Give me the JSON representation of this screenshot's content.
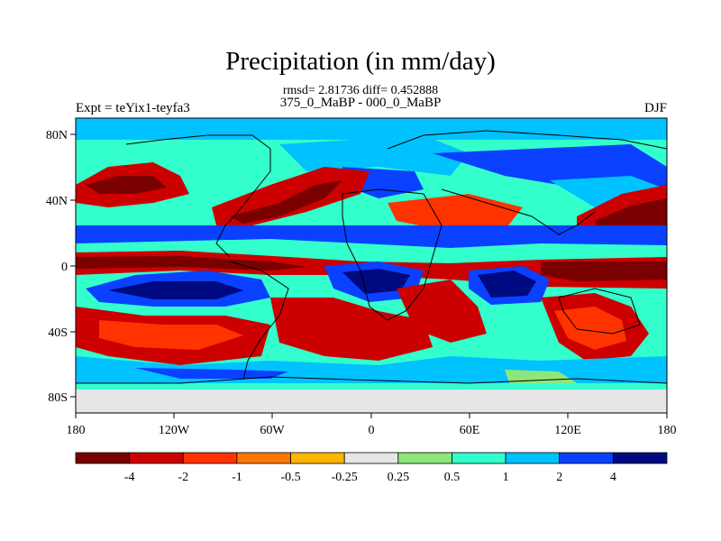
{
  "title": "Precipitation (in mm/day)",
  "subtitle": "rmsd= 2.81736 diff= 0.452888",
  "experiment": "Expt = teYix1-teyfa3",
  "comparison": "375_0_MaBP - 000_0_MaBP",
  "season": "DJF",
  "colors": {
    "dark_red": "#7a0000",
    "red": "#cc0000",
    "orange_red": "#ff3300",
    "orange": "#ff7700",
    "amber": "#ffb400",
    "neutral": "#e6e6e6",
    "light_green": "#8ee67a",
    "cyan": "#33ffcc",
    "light_blue": "#00c2ff",
    "blue": "#0a40ff",
    "navy": "#000a80"
  },
  "chart_data": {
    "type": "heatmap",
    "title": "Precipitation (in mm/day)",
    "x_ticks": [
      "180",
      "120W",
      "60W",
      "0",
      "60E",
      "120E",
      "180"
    ],
    "y_ticks": [
      "80N",
      "40N",
      "0",
      "40S",
      "80S"
    ],
    "xlim": [
      -180,
      180
    ],
    "ylim": [
      -90,
      90
    ],
    "colorbar": {
      "levels": [
        "-4",
        "-2",
        "-1",
        "-0.5",
        "-0.25",
        "0.25",
        "0.5",
        "1",
        "2",
        "4"
      ],
      "colors": [
        "#7a0000",
        "#cc0000",
        "#ff3300",
        "#ff7700",
        "#ffb400",
        "#e6e6e6",
        "#8ee67a",
        "#33ffcc",
        "#00c2ff",
        "#0a40ff",
        "#000a80"
      ]
    }
  }
}
